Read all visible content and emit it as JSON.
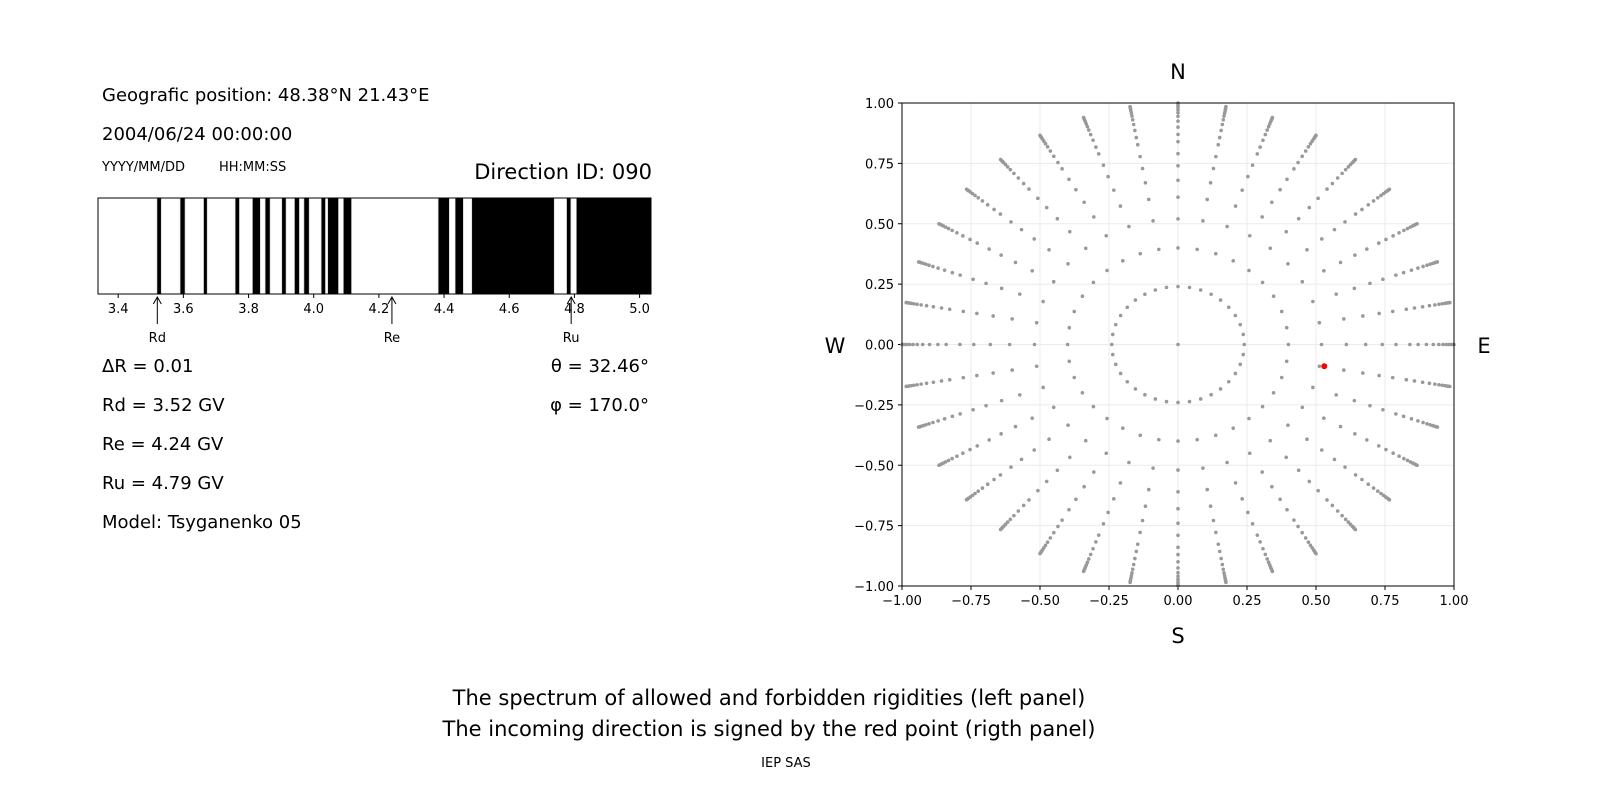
{
  "info": {
    "position": "Geografic position: 48.38°N 21.43°E",
    "datetime": "2004/06/24 00:00:00",
    "date_format": "YYYY/MM/DD",
    "time_format": "HH:MM:SS",
    "direction_id": "Direction ID: 090",
    "delta_r": "ΔR = 0.01",
    "rd": "Rd = 3.52 GV",
    "re": "Re = 4.24 GV",
    "ru": "Ru = 4.79 GV",
    "model": "Model: Tsyganenko 05",
    "theta": "θ = 32.46°",
    "phi": "φ = 170.0°"
  },
  "chart_data": [
    {
      "type": "bar",
      "description_of_marks": "forbidden (black) rigidity intervals in GV",
      "xlim": [
        3.338,
        5.035
      ],
      "xticks": [
        "3.4",
        "3.6",
        "3.8",
        "4.0",
        "4.2",
        "4.4",
        "4.6",
        "4.8",
        "5.0"
      ],
      "forbidden_intervals": [
        [
          3.519,
          3.532
        ],
        [
          3.59,
          3.605
        ],
        [
          3.662,
          3.673
        ],
        [
          3.759,
          3.772
        ],
        [
          3.812,
          3.836
        ],
        [
          3.851,
          3.866
        ],
        [
          3.902,
          3.915
        ],
        [
          3.941,
          3.956
        ],
        [
          3.97,
          3.986
        ],
        [
          4.023,
          4.036
        ],
        [
          4.043,
          4.076
        ],
        [
          4.091,
          4.116
        ],
        [
          4.382,
          4.416
        ],
        [
          4.434,
          4.459
        ],
        [
          4.485,
          4.738
        ],
        [
          4.776,
          4.789
        ],
        [
          4.806,
          5.035
        ]
      ],
      "markers": [
        {
          "label": "Rd",
          "value": 3.52
        },
        {
          "label": "Re",
          "value": 4.24
        },
        {
          "label": "Ru",
          "value": 4.79
        }
      ]
    },
    {
      "type": "scatter",
      "xlim": [
        -1,
        1
      ],
      "ylim": [
        -1,
        1
      ],
      "xticks": [
        "−1.00",
        "−0.75",
        "−0.50",
        "−0.25",
        "0.00",
        "0.25",
        "0.50",
        "0.75",
        "1.00"
      ],
      "yticks": [
        "1.00",
        "0.75",
        "0.50",
        "0.25",
        "0.00",
        "−0.25",
        "−0.50",
        "−0.75",
        "−1.00"
      ],
      "grid": true,
      "compass": {
        "n": "N",
        "s": "S",
        "e": "E",
        "w": "W"
      },
      "direction_grid": {
        "azimuth_step_deg": 10,
        "inner_ring_radius": 0.24,
        "line_radii": [
          0.4,
          0.52,
          0.61,
          0.68,
          0.74,
          0.79,
          0.84,
          0.87,
          0.9,
          0.925,
          0.945,
          0.96,
          0.972,
          0.982,
          0.99,
          0.996,
          1.0
        ],
        "center_point": [
          0,
          0
        ],
        "color": "#999999"
      },
      "incoming_direction": {
        "x": 0.53,
        "y": -0.09,
        "color": "#ff0000"
      }
    }
  ],
  "caption": {
    "line1": "The spectrum of allowed and forbidden rigidities (left panel)",
    "line2": "The incoming direction is signed by the red point (rigth panel)",
    "credit": "IEP SAS"
  }
}
